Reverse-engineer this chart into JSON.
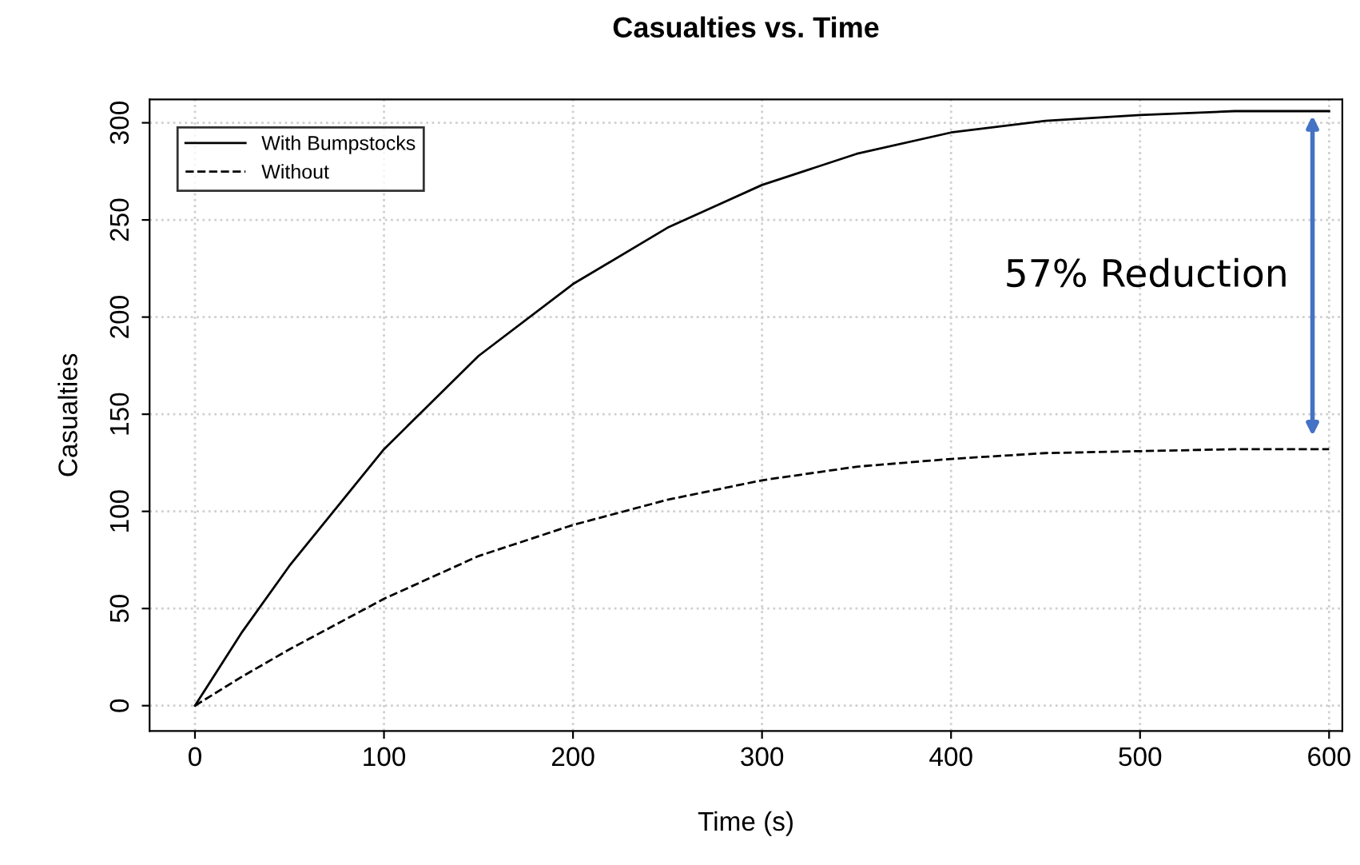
{
  "chart_data": {
    "type": "line",
    "title": "Casualties vs. Time",
    "xlabel": "Time (s)",
    "ylabel": "Casualties",
    "x": [
      0,
      25,
      50,
      100,
      150,
      200,
      250,
      300,
      350,
      400,
      450,
      500,
      550,
      600
    ],
    "series": [
      {
        "name": "With Bumpstocks",
        "color": "#000000",
        "line_style": "solid",
        "values": [
          0,
          38,
          72,
          132,
          180,
          217,
          246,
          268,
          284,
          295,
          301,
          304,
          306,
          306
        ]
      },
      {
        "name": "Without",
        "color": "#000000",
        "line_style": "dashed",
        "values": [
          0,
          15,
          29,
          55,
          77,
          93,
          106,
          116,
          123,
          127,
          130,
          131,
          132,
          132
        ]
      }
    ],
    "xlim": [
      -24,
      607
    ],
    "ylim": [
      -13,
      312
    ],
    "xticks": [
      0,
      100,
      200,
      300,
      400,
      500,
      600
    ],
    "yticks": [
      0,
      50,
      100,
      150,
      200,
      250,
      300
    ],
    "grid": true,
    "legend": "top left",
    "marker": "none",
    "annotations": [
      "57% Reduction"
    ]
  }
}
